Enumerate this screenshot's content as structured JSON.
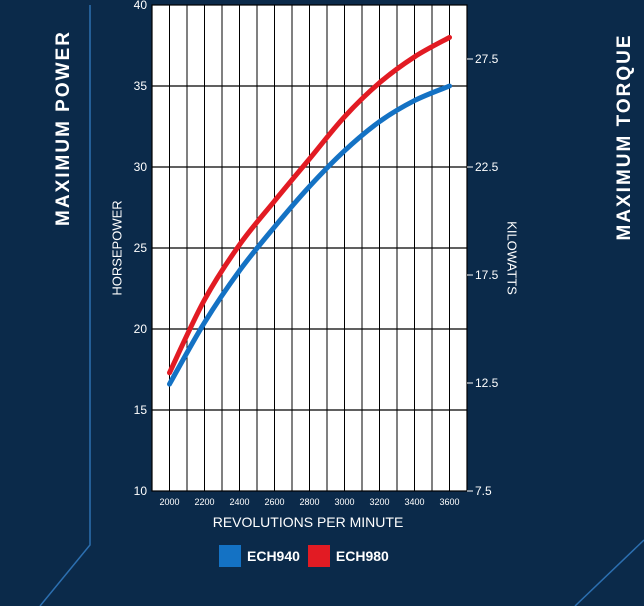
{
  "panels": {
    "left_title": "MAXIMUM POWER",
    "right_title": "MAXIMUM TORQUE"
  },
  "colors": {
    "background": "#0b2a4a",
    "plot_background": "#ffffff",
    "ech940": "#1472c4",
    "ech980": "#e21b23",
    "accent_line": "#2c6fb0"
  },
  "chart_data": {
    "type": "line",
    "xlabel": "REVOLUTIONS PER MINUTE",
    "ylabel": "HORSEPOWER",
    "y2label": "KILOWATTS",
    "xlim": [
      1900,
      3700
    ],
    "ylim": [
      10,
      40
    ],
    "y2lim": [
      7.5,
      30
    ],
    "x_ticks": [
      2000,
      2200,
      2400,
      2600,
      2800,
      3000,
      3200,
      3400,
      3600
    ],
    "y_ticks": [
      10,
      15,
      20,
      25,
      30,
      35,
      40
    ],
    "y2_ticks": [
      7.5,
      12.5,
      17.5,
      22.5,
      27.5
    ],
    "grid": true,
    "legend_position": "bottom-center",
    "series": [
      {
        "name": "ECH940",
        "x": [
          2000,
          2200,
          2400,
          2600,
          2800,
          3000,
          3200,
          3400,
          3600
        ],
        "values": [
          16.6,
          20.4,
          23.6,
          26.3,
          28.8,
          31.0,
          32.8,
          34.1,
          35.0
        ]
      },
      {
        "name": "ECH980",
        "x": [
          2000,
          2200,
          2400,
          2600,
          2800,
          3000,
          3200,
          3400,
          3600
        ],
        "values": [
          17.3,
          21.8,
          25.2,
          27.9,
          30.5,
          33.1,
          35.2,
          36.8,
          38.0
        ]
      }
    ]
  }
}
